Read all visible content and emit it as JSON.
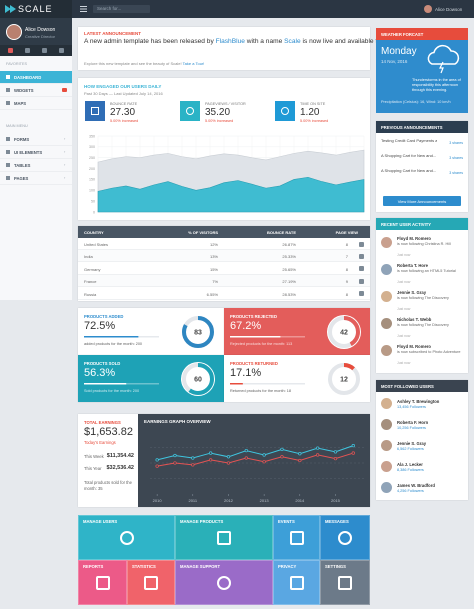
{
  "topbar": {
    "brand": "SCALE",
    "search_placeholder": "Search for...",
    "user": "Alice Dowson"
  },
  "sidebar": {
    "name": "Alice Dowson",
    "role": "Creative Director",
    "sections": [
      {
        "label": "FAVORITES",
        "items": [
          "DASHBOARD",
          "WIDGETS",
          "MAPS"
        ]
      },
      {
        "label": "MAIN MENU",
        "items": [
          "FORMS",
          "UI ELEMENTS",
          "TABLES",
          "PAGES"
        ]
      }
    ]
  },
  "announcement": {
    "label": "LATEST ANNOUNCEMENT",
    "text_before": "A new admin template has been released by ",
    "brand": "FlashBlue",
    "text_mid": " with a name ",
    "product": "Scale",
    "text_after": " is now live and available for purchase!",
    "sub": "Explore this new template and see the beauty of Scale! ",
    "link": "Take a Tour!"
  },
  "engagement": {
    "title": "HOW ENGAGED OUR USERS DAILY",
    "subtitle": "Past 30 Days — Last Updated July 14, 2016",
    "stats": [
      {
        "label": "BOUNCE RATE",
        "value": "27.30",
        "change": "5.00% increased"
      },
      {
        "label": "PAGEVIEWS / VISITOR",
        "value": "35.20",
        "change": "5.00% increased"
      },
      {
        "label": "TIME ON SITE",
        "value": "1.20",
        "change": "5.00% increased"
      }
    ]
  },
  "users_chart": {
    "type": "area",
    "categories": [
      null,
      null,
      null,
      null,
      null,
      null,
      null,
      null,
      null,
      null,
      null,
      null,
      null,
      null,
      null,
      null,
      null,
      null,
      null,
      null
    ],
    "ylim": [
      0,
      350
    ],
    "yticks": [
      0,
      50,
      100,
      150,
      200,
      250,
      300,
      350
    ],
    "grid": true,
    "series": [
      {
        "color": "#dfe3e8",
        "values": [
          230,
          245,
          255,
          250,
          262,
          270,
          255,
          245,
          258,
          268,
          262,
          250,
          240,
          255,
          270,
          280,
          272,
          262,
          275,
          285
        ]
      },
      {
        "color": "#3fbcd1",
        "values": [
          95,
          110,
          120,
          105,
          125,
          140,
          118,
          100,
          112,
          135,
          145,
          128,
          110,
          120,
          150,
          160,
          140,
          125,
          138,
          150
        ]
      }
    ]
  },
  "table": {
    "header": [
      "COUNTRY",
      "% OF VISITORS",
      "BOUNCE RATE",
      "PAGE VIEW"
    ],
    "rows": [
      [
        "United States",
        "12%",
        "26.87%",
        "8"
      ],
      [
        "India",
        "13%",
        "25.33%",
        "7"
      ],
      [
        "Germany",
        "15%",
        "25.65%",
        "8"
      ],
      [
        "France",
        "7%",
        "27.19%",
        "9"
      ],
      [
        "Russia",
        "6.55%",
        "28.53%",
        "8"
      ]
    ]
  },
  "products": [
    {
      "label": "PRODUCTS ADDED",
      "value": 72.5,
      "value_label": "72.5%",
      "note": "added products for the month: 200",
      "ring": 83
    },
    {
      "label": "PRODUCTS REJECTED",
      "value": 67.2,
      "value_label": "67.2%",
      "note": "Rejected products for the month: 113",
      "ring": 42
    },
    {
      "label": "PRODUCTS SOLD",
      "value": 56.3,
      "value_label": "56.3%",
      "note": "Sold products for the month: 200",
      "ring": 60
    },
    {
      "label": "PRODUCTS RETURNED",
      "value": 17.1,
      "value_label": "17.1%",
      "note": "Returned products for the month: 18",
      "ring": 12
    }
  ],
  "earnings": {
    "label": "TOTAL EARNINGS",
    "total": "$1,653.82",
    "total_caption": "Today's Earnings",
    "rows": [
      {
        "label": "This Week",
        "value": "$11,354.42"
      },
      {
        "label": "This Year",
        "value": "$32,536.42"
      }
    ],
    "note": "Total products sold for the month: 35"
  },
  "earnings_chart": {
    "type": "line",
    "title": "EARNINGS GRAPH OVERVIEW",
    "x": [
      2010,
      2010.5,
      2011,
      2011.5,
      2012,
      2012.5,
      2013,
      2013.5,
      2014,
      2014.5,
      2015,
      2015.5
    ],
    "xlim": [
      2009.8,
      2015.8
    ],
    "xticks": [
      2010,
      2011,
      2012,
      2013,
      2014,
      2015
    ],
    "ylim": [
      0,
      100
    ],
    "series": [
      {
        "color": "#3fc6e0",
        "values": [
          55,
          62,
          58,
          66,
          60,
          70,
          63,
          72,
          65,
          74,
          68,
          78
        ]
      },
      {
        "color": "#e55353",
        "values": [
          45,
          50,
          47,
          55,
          50,
          58,
          52,
          60,
          54,
          63,
          57,
          66
        ]
      }
    ]
  },
  "tiles": [
    {
      "label": "MANAGE USERS",
      "color": "#2fb4c8"
    },
    {
      "label": "MANAGE PRODUCTS",
      "color": "#2ab0b8"
    },
    {
      "label": "EVENTS",
      "color": "#3d9fd8"
    },
    {
      "label": "MESSAGES",
      "color": "#2d8ccd"
    },
    {
      "label": "REPORTS",
      "color": "#ec5a88"
    },
    {
      "label": "STATISTICS",
      "color": "#f0636a"
    },
    {
      "label": "MANAGE SUPPORT",
      "color": "#9a6bc8"
    },
    {
      "label": "PRIVACY",
      "color": "#5aa7e2"
    },
    {
      "label": "SETTINGS",
      "color": "#6c7a89"
    }
  ],
  "weather": {
    "title": "WEATHER FORCAST",
    "day": "Monday",
    "date": "14 Nov, 2016",
    "text": "Thunderstorms in the area of responsibility this afternoon through this evening.",
    "details": "Precipitation (Celsius): 16, Wind: 10 km/h"
  },
  "announcements": {
    "title": "PREVIOUS ANNOUNCEMENTS",
    "items": [
      {
        "text": "Testing Credit Card Payments and...",
        "shares": "3 shares"
      },
      {
        "text": "A Shopping Cart for New and...",
        "shares": "3 shares"
      },
      {
        "text": "A Shopping Cart for New and...",
        "shares": "3 shares"
      }
    ],
    "button": "View More Announcements"
  },
  "activity": {
    "title": "RECENT USER ACTIVITY",
    "items": [
      {
        "name": "Floyd M. Romero",
        "action": "is now following Christina R. Hill",
        "time": "Just now"
      },
      {
        "name": "Roberta T. Hore",
        "action": "is now following an HTML5 Tutorial",
        "time": "Just now"
      },
      {
        "name": "Jennie S. Gray",
        "action": "is now following The Discovery",
        "time": "Just now"
      },
      {
        "name": "Nicholas T. Webb",
        "action": "is now following The Discovery",
        "time": "Just now"
      },
      {
        "name": "Floyd M. Romero",
        "action": "is now subscribed to Photo Adventure",
        "time": "Just now"
      }
    ]
  },
  "followed": {
    "title": "MOST FOLLOWED USERS",
    "items": [
      {
        "name": "Ashley T. Brewington",
        "followers": "13,456 Followers"
      },
      {
        "name": "Roberta F. Horn",
        "followers": "10,256 Followers"
      },
      {
        "name": "Jennie S. Gray",
        "followers": "6,562 Followers"
      },
      {
        "name": "Ala J. Lecker",
        "followers": "8,386 Followers"
      },
      {
        "name": "James W. Bradford",
        "followers": "4,256 Followers"
      }
    ]
  }
}
